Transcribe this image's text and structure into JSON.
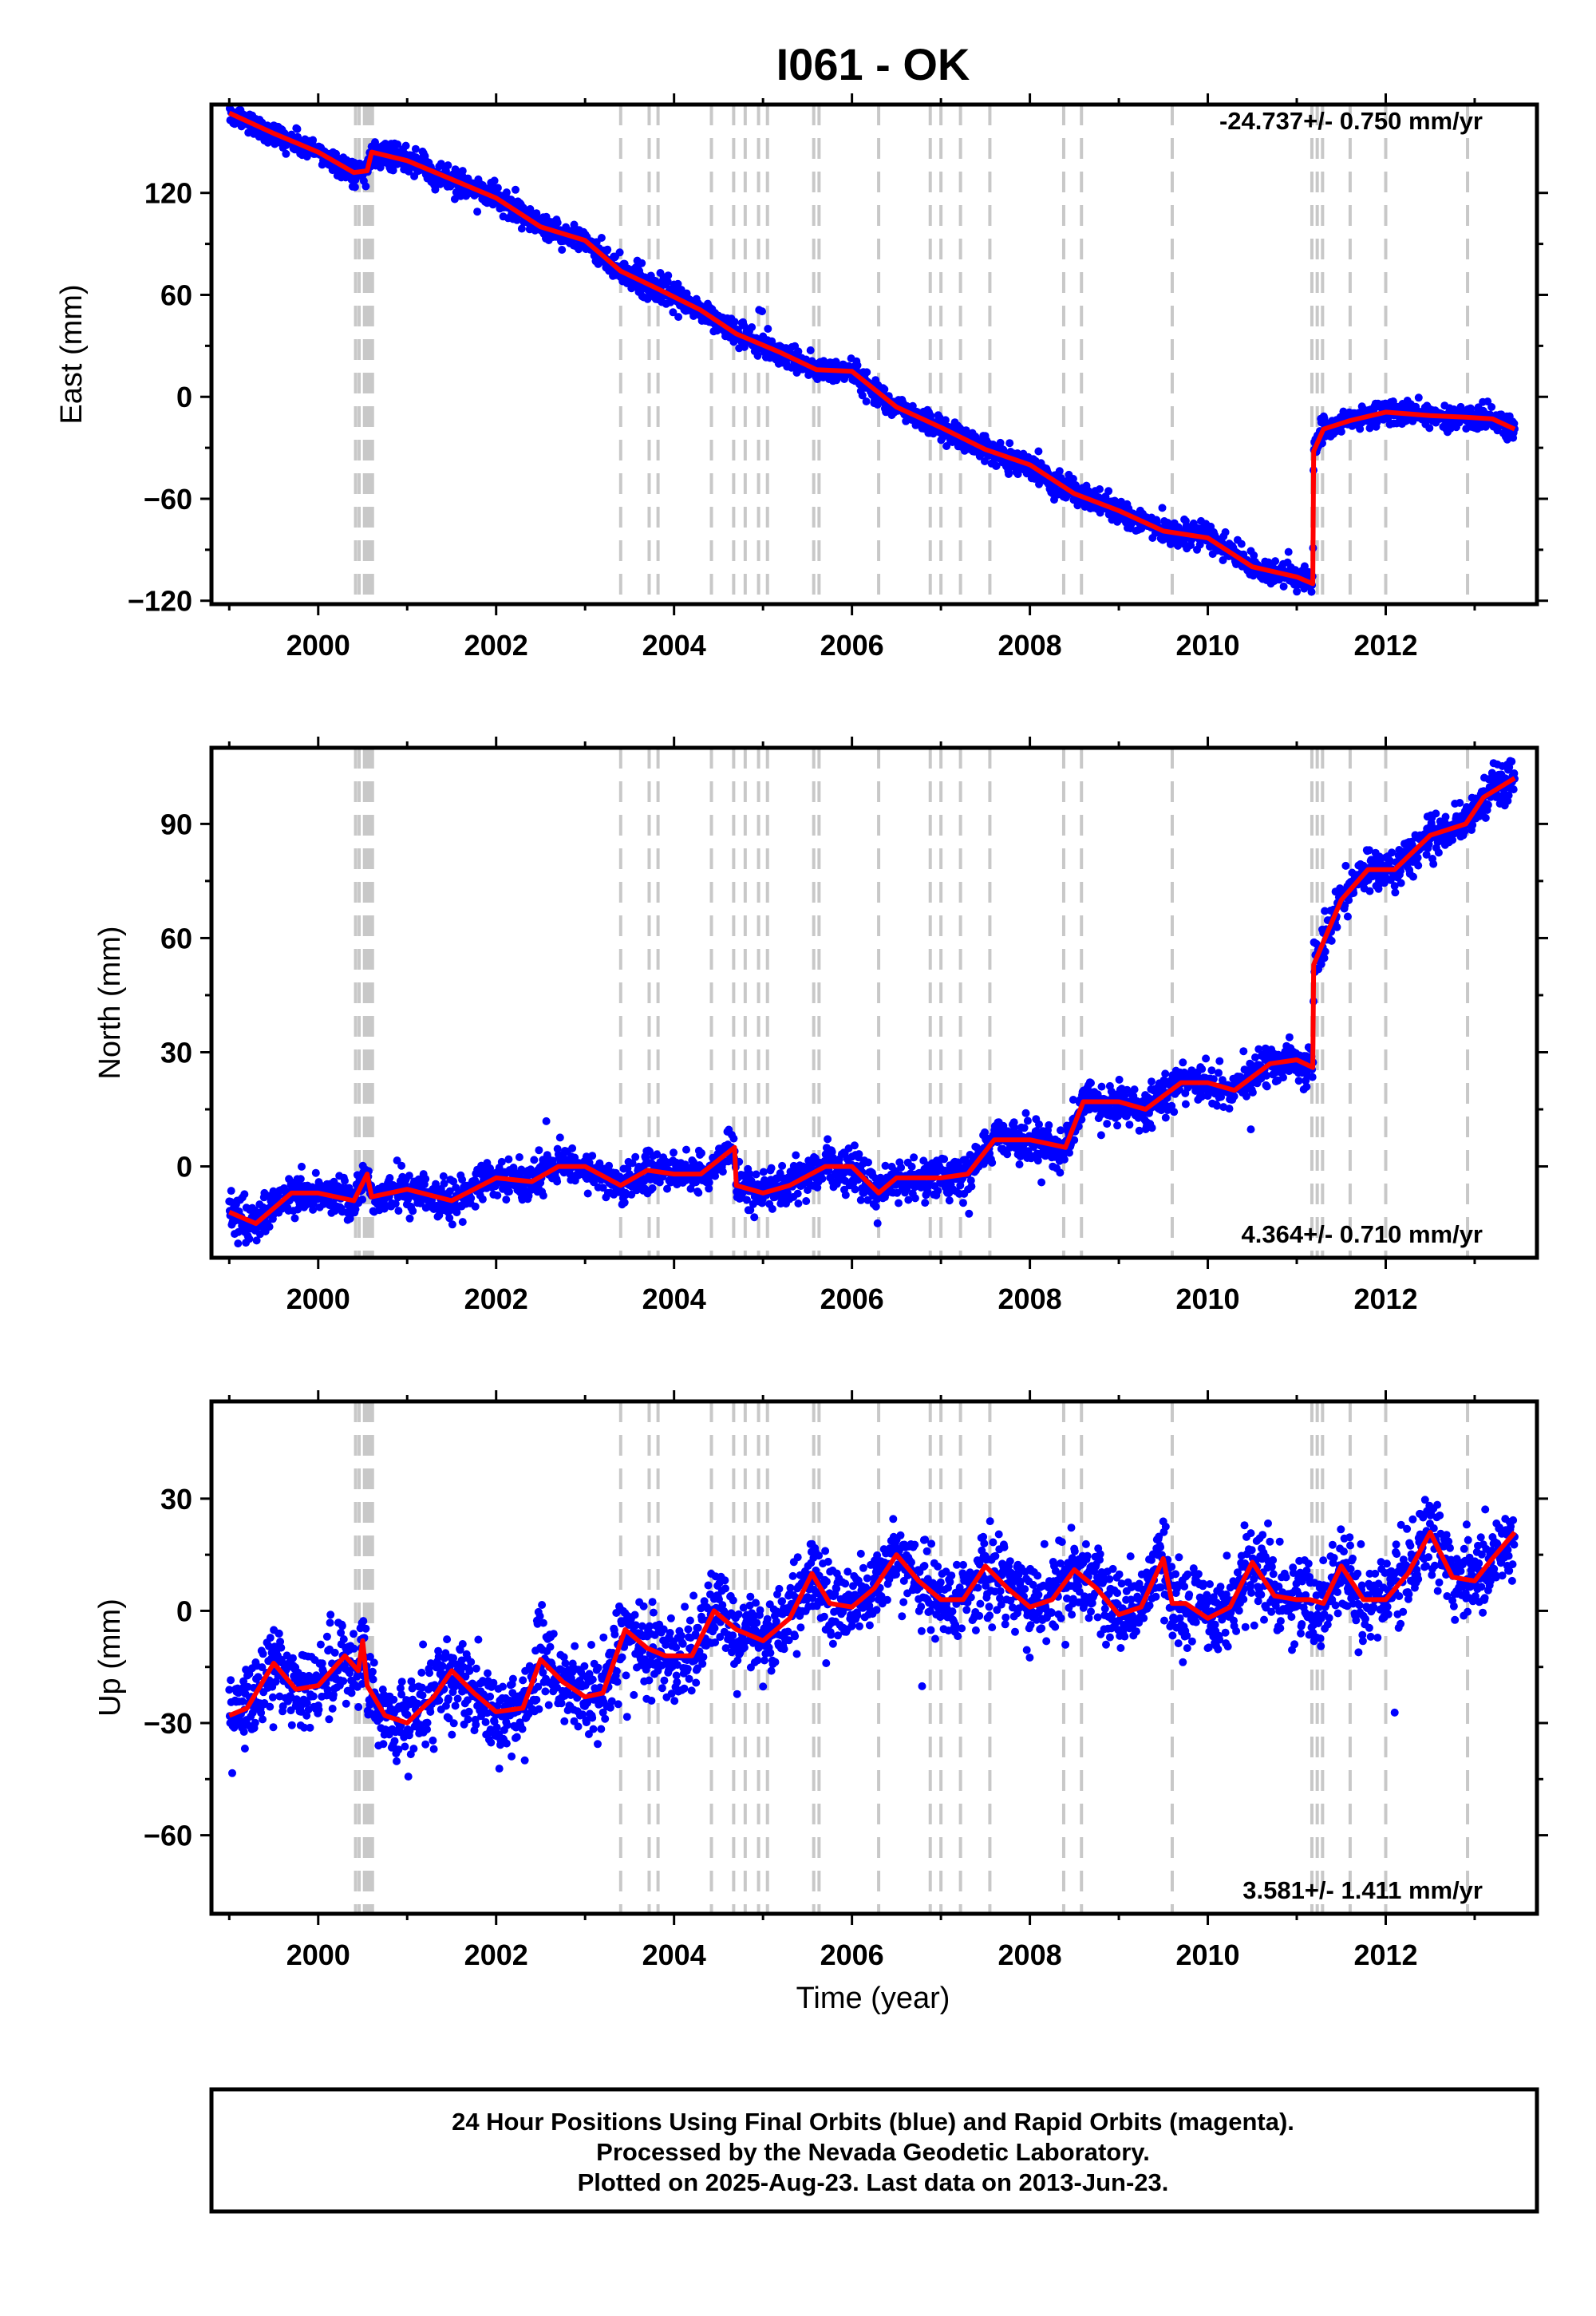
{
  "chart_data": {
    "type": "scatter",
    "title": "I061 - OK",
    "xlabel": "Time (year)",
    "xlim": [
      1998.8,
      2013.7
    ],
    "xticks": [
      2000,
      2002,
      2004,
      2006,
      2008,
      2010,
      2012
    ],
    "xtick_labels": [
      "2000",
      "2002",
      "2004",
      "2006",
      "2008",
      "2010",
      "2012"
    ],
    "series_colors": {
      "observations": "#0000ff",
      "model": "#ff0000",
      "events": "#c8c8c8"
    },
    "event_lines": [
      2000.42,
      2000.46,
      2000.52,
      2000.55,
      2000.58,
      2000.61,
      2003.4,
      2003.72,
      2003.82,
      2004.42,
      2004.67,
      2004.8,
      2004.95,
      2005.05,
      2005.57,
      2005.63,
      2006.3,
      2006.88,
      2007.0,
      2007.22,
      2007.55,
      2008.38,
      2008.58,
      2009.6,
      2011.17,
      2011.23,
      2011.29,
      2011.6,
      2012.0,
      2012.92
    ],
    "panels": [
      {
        "ylabel": "East (mm)",
        "ylim": [
          -122,
          172
        ],
        "yticks": [
          -120,
          -60,
          0,
          60,
          120
        ],
        "ytick_labels": [
          "−120",
          "−60",
          "0",
          "60",
          "120"
        ],
        "rate": "-24.737+/- 0.750 mm/yr",
        "rate_position": "top-right",
        "model": {
          "x": [
            1999.0,
            1999.5,
            2000.0,
            2000.4,
            2000.55,
            2000.6,
            2001.0,
            2001.5,
            2002.0,
            2002.5,
            2003.0,
            2003.4,
            2003.8,
            2004.3,
            2004.7,
            2005.2,
            2005.6,
            2006.0,
            2006.5,
            2007.0,
            2007.5,
            2008.0,
            2008.5,
            2009.0,
            2009.5,
            2010.0,
            2010.5,
            2011.0,
            2011.18,
            2011.19,
            2011.3,
            2011.6,
            2012.0,
            2012.5,
            2012.9,
            2013.2,
            2013.45
          ],
          "y": [
            167,
            155,
            144,
            132,
            133,
            144,
            139,
            128,
            117,
            100,
            92,
            74,
            64,
            51,
            37,
            26,
            16,
            15,
            -6,
            -18,
            -31,
            -40,
            -57,
            -67,
            -79,
            -83,
            -100,
            -106,
            -110,
            -32,
            -19,
            -14,
            -9,
            -11,
            -12,
            -13,
            -19
          ]
        },
        "obs_noise": 3.5
      },
      {
        "ylabel": "North (mm)",
        "ylim": [
          -24,
          110
        ],
        "yticks": [
          0,
          30,
          60,
          90
        ],
        "ytick_labels": [
          "0",
          "30",
          "60",
          "90"
        ],
        "rate": "4.364+/- 0.710 mm/yr",
        "rate_position": "bottom-right",
        "model": {
          "x": [
            1999.0,
            1999.3,
            1999.7,
            2000.0,
            2000.4,
            2000.55,
            2000.6,
            2001.0,
            2001.5,
            2002.0,
            2002.4,
            2002.7,
            2003.0,
            2003.4,
            2003.7,
            2004.0,
            2004.3,
            2004.68,
            2004.7,
            2005.0,
            2005.3,
            2005.7,
            2006.0,
            2006.3,
            2006.5,
            2007.0,
            2007.3,
            2007.6,
            2008.0,
            2008.4,
            2008.6,
            2009.0,
            2009.3,
            2009.7,
            2010.0,
            2010.3,
            2010.7,
            2011.0,
            2011.18,
            2011.19,
            2011.5,
            2011.8,
            2012.1,
            2012.5,
            2012.9,
            2013.1,
            2013.45
          ],
          "y": [
            -12,
            -15,
            -7,
            -7,
            -9,
            -2,
            -8,
            -6,
            -9,
            -3,
            -4,
            0,
            0,
            -5,
            -1,
            -2,
            -2,
            5,
            -5,
            -7,
            -5,
            0,
            0,
            -7,
            -3,
            -3,
            -2,
            7,
            7,
            5,
            17,
            17,
            15,
            22,
            22,
            20,
            27,
            28,
            26,
            53,
            70,
            78,
            78,
            87,
            90,
            97,
            102
          ]
        },
        "obs_noise": 2.5
      },
      {
        "ylabel": "Up (mm)",
        "ylim": [
          -81,
          56
        ],
        "yticks": [
          -60,
          -30,
          0,
          30
        ],
        "ytick_labels": [
          "−60",
          "−30",
          "0",
          "30"
        ],
        "rate": "3.581+/- 1.411 mm/yr",
        "rate_position": "bottom-right",
        "model": {
          "x": [
            1999.0,
            1999.2,
            1999.5,
            1999.75,
            2000.0,
            2000.3,
            2000.45,
            2000.5,
            2000.55,
            2000.6,
            2000.75,
            2001.0,
            2001.3,
            2001.5,
            2001.75,
            2002.0,
            2002.3,
            2002.5,
            2002.75,
            2003.0,
            2003.2,
            2003.45,
            2003.7,
            2003.9,
            2004.2,
            2004.45,
            2004.7,
            2005.0,
            2005.3,
            2005.55,
            2005.75,
            2006.0,
            2006.25,
            2006.5,
            2006.75,
            2007.0,
            2007.25,
            2007.5,
            2007.75,
            2008.0,
            2008.25,
            2008.5,
            2008.75,
            2009.0,
            2009.25,
            2009.5,
            2009.6,
            2009.75,
            2010.0,
            2010.25,
            2010.5,
            2010.75,
            2011.0,
            2011.15,
            2011.3,
            2011.5,
            2011.75,
            2012.0,
            2012.25,
            2012.5,
            2012.75,
            2013.0,
            2013.2,
            2013.45
          ],
          "y": [
            -28,
            -26,
            -14,
            -21,
            -20,
            -12,
            -16,
            -8,
            -20,
            -22,
            -28,
            -30,
            -23,
            -16,
            -22,
            -27,
            -26,
            -13,
            -19,
            -23,
            -22,
            -5,
            -10,
            -12,
            -12,
            0,
            -5,
            -8,
            -2,
            10,
            2,
            1,
            6,
            15,
            8,
            3,
            3,
            12,
            6,
            1,
            3,
            11,
            6,
            -1,
            1,
            14,
            2,
            2,
            -2,
            1,
            13,
            4,
            3,
            3,
            2,
            12,
            3,
            3,
            10,
            21,
            9,
            8,
            14,
            21
          ]
        },
        "obs_noise": 5.5
      }
    ]
  },
  "footer": {
    "line1": "24 Hour Positions Using Final Orbits (blue) and Rapid Orbits (magenta).",
    "line2": "Processed by the Nevada Geodetic Laboratory.",
    "line3": "Plotted on 2025-Aug-23. Last data on 2013-Jun-23."
  }
}
